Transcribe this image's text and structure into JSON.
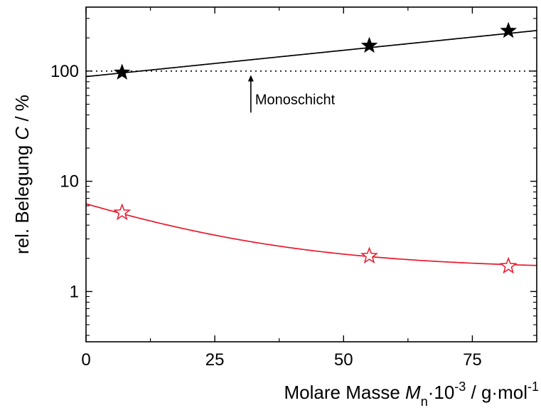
{
  "chart_data": {
    "type": "scatter",
    "title": "",
    "xlabel": {
      "prefix": "Molare Masse ",
      "symbol": "M",
      "subscript": "n",
      "mid": "·10",
      "exponent": "-3",
      "unit": " / g·mol",
      "unit_exponent": "-1"
    },
    "ylabel": {
      "prefix": "rel. Belegung ",
      "symbol": "C",
      "unit": " / %"
    },
    "xlim": [
      0,
      87.5
    ],
    "ylim": [
      0.35,
      380
    ],
    "yscale": "log",
    "x_ticks": [
      {
        "value": 0,
        "label": "0"
      },
      {
        "value": 25,
        "label": "25"
      },
      {
        "value": 50,
        "label": "50"
      },
      {
        "value": 75,
        "label": "75"
      }
    ],
    "y_ticks": [
      {
        "value": 1,
        "label": "1"
      },
      {
        "value": 10,
        "label": "10"
      },
      {
        "value": 100,
        "label": "100"
      }
    ],
    "grid": false,
    "reference_line": {
      "y": 100,
      "style": "dotted"
    },
    "annotation": {
      "text": "Monoschicht",
      "x": 32,
      "y_from": 42,
      "y_to": 92
    },
    "series": [
      {
        "marker": "filled-star",
        "color": "#000000",
        "points": [
          {
            "x": 7,
            "y": 97
          },
          {
            "x": 55,
            "y": 170
          },
          {
            "x": 82,
            "y": 232
          }
        ],
        "fit": {
          "type": "exponential",
          "a": 89,
          "b": 0.011
        }
      },
      {
        "marker": "open-star",
        "color": "#e8192c",
        "points": [
          {
            "x": 7,
            "y": 5.2
          },
          {
            "x": 55,
            "y": 2.1
          },
          {
            "x": 82,
            "y": 1.7
          }
        ],
        "fit": {
          "type": "exponential-decay",
          "base": 1.6,
          "amp": 4.65,
          "rate": 0.0415
        }
      }
    ]
  }
}
